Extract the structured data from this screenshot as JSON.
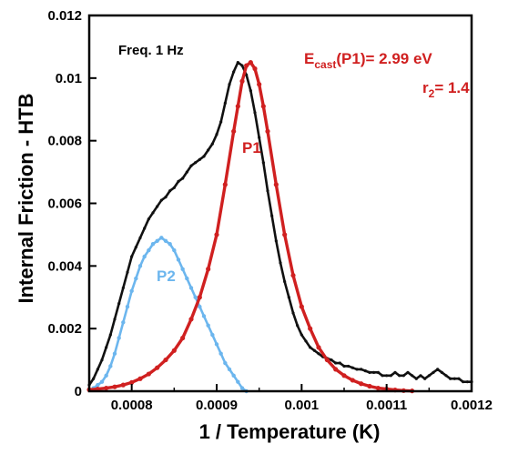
{
  "chart_data": {
    "type": "scatter",
    "title": "",
    "xlabel": "1 / Temperature (K)",
    "ylabel": "Internal Friction - HTB",
    "xlim": [
      0.00075,
      0.0012
    ],
    "ylim": [
      0,
      0.012
    ],
    "x_ticks": [
      0.0008,
      0.0009,
      0.001,
      0.0011,
      0.0012
    ],
    "x_tick_labels": [
      "0.0008",
      "0.0009",
      "0.001",
      "0.0011",
      "0.0012"
    ],
    "y_ticks": [
      0,
      0.002,
      0.004,
      0.006,
      0.008,
      0.01,
      0.012
    ],
    "y_tick_labels": [
      "0",
      "0.002",
      "0.004",
      "0.006",
      "0.008",
      "0.01",
      "0.012"
    ],
    "grid": false,
    "annotations": {
      "freq": "Freq. 1 Hz",
      "energy_main": "E",
      "energy_sub": "cast",
      "energy_rest": "(P1)= 2.99 eV",
      "r2_main": "r",
      "r2_sub": "2",
      "r2_rest": "= 1.4",
      "p1_label": "P1",
      "p2_label": "P2"
    },
    "colors": {
      "measured": "#111111",
      "p1": "#d02020",
      "p2": "#6cb6ee",
      "annotation_red": "#d02020",
      "annotation_blue": "#6cb6ee"
    },
    "series": [
      {
        "key": "measured",
        "x": [
          0.00075,
          0.000755,
          0.00076,
          0.000765,
          0.00077,
          0.000775,
          0.00078,
          0.000785,
          0.00079,
          0.000795,
          0.0008,
          0.000805,
          0.00081,
          0.000815,
          0.00082,
          0.000825,
          0.00083,
          0.000835,
          0.00084,
          0.000845,
          0.00085,
          0.000855,
          0.00086,
          0.000865,
          0.00087,
          0.000875,
          0.00088,
          0.000885,
          0.00089,
          0.000895,
          0.0009,
          0.000905,
          0.00091,
          0.000915,
          0.00092,
          0.000925,
          0.00093,
          0.000935,
          0.00094,
          0.000945,
          0.00095,
          0.000955,
          0.00096,
          0.000965,
          0.00097,
          0.000975,
          0.00098,
          0.000985,
          0.00099,
          0.000995,
          0.001,
          0.001005,
          0.00101,
          0.001015,
          0.00102,
          0.001025,
          0.00103,
          0.001035,
          0.00104,
          0.001045,
          0.00105,
          0.001055,
          0.00106,
          0.001065,
          0.00107,
          0.001075,
          0.00108,
          0.001085,
          0.00109,
          0.001095,
          0.0011,
          0.001105,
          0.00111,
          0.001115,
          0.00112,
          0.001125,
          0.00113,
          0.001135,
          0.00114,
          0.001145,
          0.00115,
          0.001155,
          0.00116,
          0.001165,
          0.00117,
          0.001175,
          0.00118,
          0.001185,
          0.00119,
          0.001195,
          0.0012
        ],
        "y": [
          0.0002,
          0.0004,
          0.0007,
          0.001,
          0.0014,
          0.0018,
          0.0023,
          0.0028,
          0.0033,
          0.0038,
          0.0043,
          0.0046,
          0.0049,
          0.0052,
          0.0055,
          0.0057,
          0.0059,
          0.0061,
          0.0062,
          0.0064,
          0.0065,
          0.0067,
          0.0068,
          0.007,
          0.0072,
          0.0073,
          0.0074,
          0.0075,
          0.0077,
          0.0079,
          0.0082,
          0.0086,
          0.0092,
          0.0098,
          0.0102,
          0.0105,
          0.0104,
          0.0101,
          0.0096,
          0.0089,
          0.0081,
          0.0073,
          0.0064,
          0.0056,
          0.0048,
          0.0041,
          0.0035,
          0.003,
          0.0025,
          0.0021,
          0.0018,
          0.0016,
          0.0014,
          0.0013,
          0.0012,
          0.0011,
          0.00105,
          0.001,
          0.0009,
          0.0009,
          0.0008,
          0.0008,
          0.00075,
          0.0007,
          0.0007,
          0.00065,
          0.0006,
          0.0006,
          0.0006,
          0.0005,
          0.0005,
          0.0005,
          0.0006,
          0.0005,
          0.0005,
          0.0006,
          0.0005,
          0.0004,
          0.0005,
          0.0004,
          0.0005,
          0.0006,
          0.0007,
          0.0006,
          0.0005,
          0.0004,
          0.0004,
          0.0004,
          0.0003,
          0.0003,
          0.0003
        ]
      },
      {
        "key": "p1",
        "x": [
          0.00075,
          0.00076,
          0.00077,
          0.00078,
          0.00079,
          0.0008,
          0.00081,
          0.00082,
          0.00083,
          0.00084,
          0.00085,
          0.00086,
          0.00087,
          0.00088,
          0.00089,
          0.0009,
          0.00091,
          0.00092,
          0.000925,
          0.00093,
          0.000935,
          0.00094,
          0.000945,
          0.00095,
          0.000955,
          0.00096,
          0.00097,
          0.00098,
          0.00099,
          0.001,
          0.00101,
          0.00102,
          0.00103,
          0.00104,
          0.00105,
          0.00106,
          0.00107,
          0.00108,
          0.00109,
          0.0011,
          0.00111,
          0.00112,
          0.00113
        ],
        "y": [
          5e-05,
          7e-05,
          0.0001,
          0.00014,
          0.0002,
          0.00028,
          0.0004,
          0.00055,
          0.00075,
          0.001,
          0.0013,
          0.0017,
          0.0023,
          0.003,
          0.0039,
          0.005,
          0.0066,
          0.0083,
          0.0091,
          0.0099,
          0.0104,
          0.0105,
          0.0103,
          0.0098,
          0.0091,
          0.0083,
          0.0066,
          0.005,
          0.0037,
          0.0027,
          0.002,
          0.0014,
          0.001,
          0.0007,
          0.0005,
          0.00035,
          0.00024,
          0.00016,
          0.0001,
          7e-05,
          4e-05,
          2e-05,
          1e-05
        ]
      },
      {
        "key": "p2",
        "x": [
          0.000755,
          0.00076,
          0.000765,
          0.00077,
          0.000775,
          0.00078,
          0.000785,
          0.00079,
          0.000795,
          0.0008,
          0.000805,
          0.00081,
          0.000815,
          0.00082,
          0.000825,
          0.00083,
          0.000835,
          0.00084,
          0.000845,
          0.00085,
          0.000855,
          0.00086,
          0.000865,
          0.00087,
          0.000875,
          0.00088,
          0.000885,
          0.00089,
          0.000895,
          0.0009,
          0.000905,
          0.00091,
          0.000915,
          0.00092,
          0.000925,
          0.00093,
          0.000935
        ],
        "y": [
          0.0001,
          0.0002,
          0.0003,
          0.0005,
          0.0008,
          0.0012,
          0.0017,
          0.0022,
          0.0027,
          0.0032,
          0.0036,
          0.004,
          0.0043,
          0.0045,
          0.0047,
          0.0048,
          0.0049,
          0.0048,
          0.0047,
          0.0045,
          0.0042,
          0.0039,
          0.0036,
          0.0033,
          0.003,
          0.0027,
          0.0024,
          0.0021,
          0.0018,
          0.0015,
          0.0012,
          0.0009,
          0.0007,
          0.0005,
          0.0003,
          0.0001,
          0.0
        ]
      }
    ]
  }
}
